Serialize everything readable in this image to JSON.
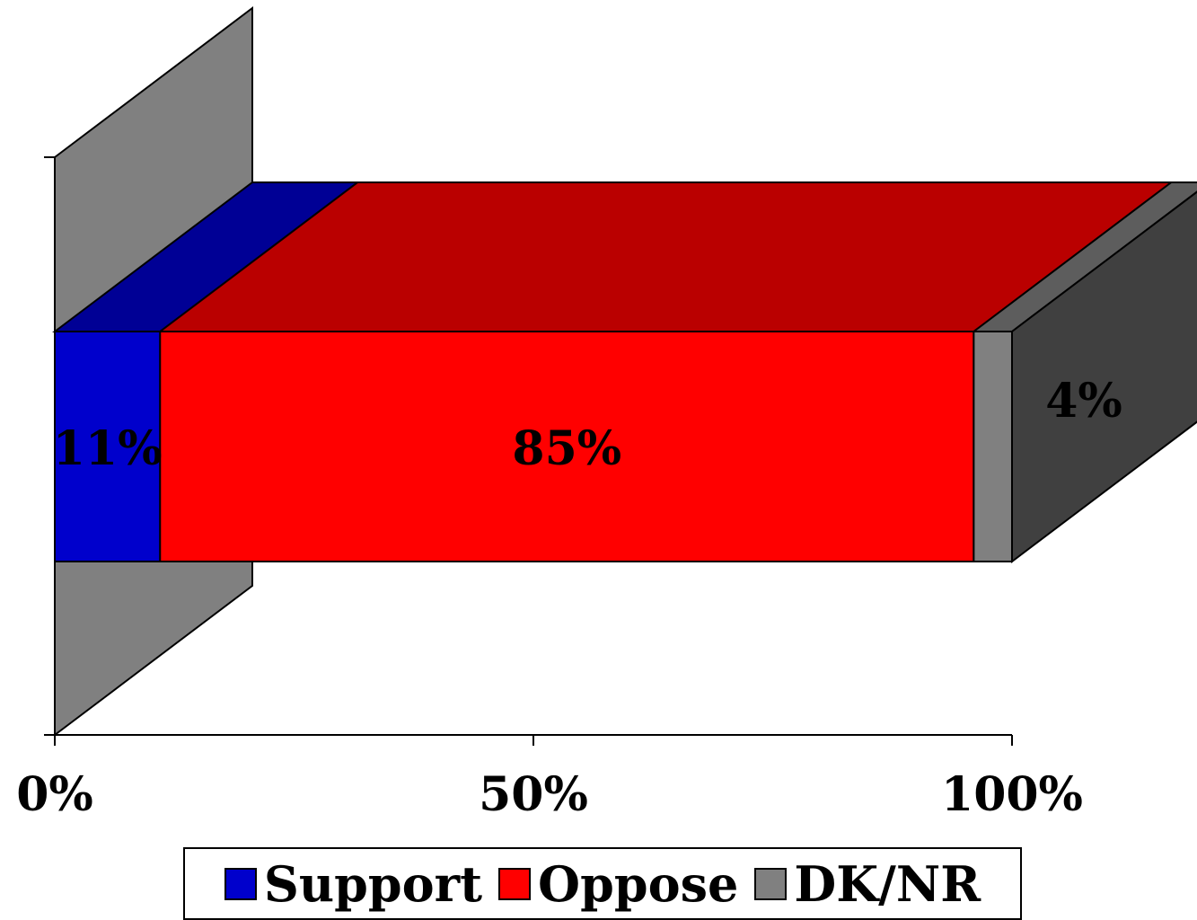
{
  "chart_data": {
    "type": "bar",
    "orientation": "horizontal",
    "stacked": "percent",
    "three_d": true,
    "categories": [
      ""
    ],
    "series": [
      {
        "name": "Support",
        "values": [
          11
        ],
        "label": "11%",
        "color": "#0000CC"
      },
      {
        "name": "Oppose",
        "values": [
          85
        ],
        "label": "85%",
        "color": "#FF0000"
      },
      {
        "name": "DK/NR",
        "values": [
          4
        ],
        "label": "4%",
        "color": "#808080"
      }
    ],
    "xlim": [
      0,
      100
    ],
    "x_ticks": [
      "0%",
      "50%",
      "100%"
    ],
    "legend_position": "bottom",
    "grid": false,
    "title": "",
    "xlabel": "",
    "ylabel": ""
  }
}
